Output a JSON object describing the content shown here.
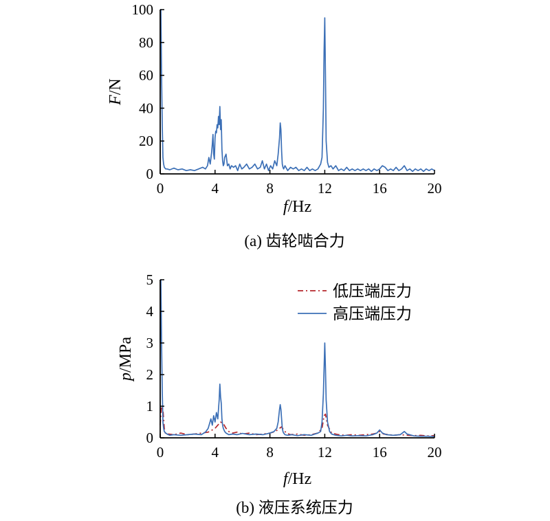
{
  "chart_data": [
    {
      "type": "line",
      "caption": "(a) 齿轮啮合力",
      "xlabel_var": "f",
      "xlabel_unit": "/Hz",
      "ylabel_var": "F",
      "ylabel_unit": "/N",
      "xlim": [
        0,
        20
      ],
      "ylim": [
        0,
        100
      ],
      "xticks": [
        0,
        4,
        8,
        12,
        16,
        20
      ],
      "yticks": [
        0,
        20,
        40,
        60,
        80,
        100
      ],
      "grid": false,
      "series": [
        {
          "name": "",
          "color": "#3b6fb6",
          "dash": "",
          "x": [
            0,
            0.05,
            0.1,
            0.15,
            0.2,
            0.25,
            0.3,
            0.35,
            0.4,
            0.5,
            0.7,
            1.0,
            1.3,
            1.6,
            1.9,
            2.2,
            2.5,
            2.8,
            3.1,
            3.3,
            3.45,
            3.55,
            3.65,
            3.75,
            3.8,
            3.85,
            3.9,
            3.95,
            4.0,
            4.05,
            4.1,
            4.15,
            4.2,
            4.25,
            4.3,
            4.35,
            4.4,
            4.45,
            4.5,
            4.55,
            4.6,
            4.65,
            4.7,
            4.8,
            4.9,
            5.0,
            5.1,
            5.2,
            5.35,
            5.5,
            5.65,
            5.8,
            5.95,
            6.1,
            6.3,
            6.5,
            6.7,
            6.9,
            7.1,
            7.3,
            7.45,
            7.6,
            7.75,
            7.9,
            8.05,
            8.2,
            8.35,
            8.5,
            8.6,
            8.7,
            8.75,
            8.8,
            8.85,
            8.9,
            8.95,
            9.0,
            9.1,
            9.3,
            9.5,
            9.7,
            9.9,
            10.1,
            10.3,
            10.5,
            10.7,
            10.9,
            11.1,
            11.3,
            11.5,
            11.7,
            11.8,
            11.9,
            11.95,
            12.0,
            12.05,
            12.1,
            12.2,
            12.3,
            12.45,
            12.6,
            12.8,
            13.0,
            13.2,
            13.4,
            13.6,
            13.8,
            14.0,
            14.2,
            14.4,
            14.6,
            14.8,
            15.0,
            15.2,
            15.4,
            15.6,
            15.8,
            16.0,
            16.2,
            16.4,
            16.6,
            16.8,
            17.0,
            17.2,
            17.4,
            17.6,
            17.8,
            18.0,
            18.2,
            18.4,
            18.6,
            18.8,
            19.0,
            19.2,
            19.4,
            19.6,
            19.8,
            20.0
          ],
          "y": [
            100,
            100,
            60,
            30,
            10,
            6,
            4,
            3.5,
            3,
            3,
            2.5,
            3.5,
            2.5,
            3,
            2,
            2.5,
            2,
            3,
            4,
            3,
            5,
            10,
            6,
            13,
            18,
            24,
            12,
            9,
            22,
            26,
            25,
            30,
            28,
            35,
            30,
            41,
            27,
            33,
            15,
            8,
            5,
            6,
            10,
            12,
            5,
            6,
            3,
            5,
            4,
            5,
            2,
            6,
            3,
            4,
            6,
            3,
            4,
            6,
            3,
            4,
            8,
            3,
            6,
            2,
            5,
            3,
            8,
            5,
            12,
            22,
            31,
            27,
            14,
            6,
            4,
            3,
            5,
            2,
            4,
            3,
            4,
            2,
            3,
            2,
            4,
            2,
            3,
            2,
            3,
            6,
            10,
            40,
            75,
            95,
            60,
            20,
            7,
            4,
            5,
            3,
            5,
            2,
            3,
            2,
            4,
            2,
            3,
            2,
            3,
            2,
            3,
            2,
            3,
            1.5,
            3,
            2,
            3,
            5,
            4,
            2,
            3,
            2,
            4,
            2,
            3,
            5,
            2,
            3,
            1.5,
            3,
            2,
            3,
            1.5,
            3,
            2,
            3,
            2
          ]
        }
      ]
    },
    {
      "type": "line",
      "caption": "(b) 液压系统压力",
      "xlabel_var": "f",
      "xlabel_unit": "/Hz",
      "ylabel_var": "p",
      "ylabel_unit": "/MPa",
      "xlim": [
        0,
        20
      ],
      "ylim": [
        0,
        5
      ],
      "xticks": [
        0,
        4,
        8,
        12,
        16,
        20
      ],
      "yticks": [
        0,
        1,
        2,
        3,
        4,
        5
      ],
      "grid": false,
      "legend_position": "top-right",
      "series": [
        {
          "name": "低压端压力",
          "color": "#b5262b",
          "dash": "8,4,2,4",
          "x": [
            0,
            0.1,
            0.2,
            0.3,
            0.4,
            0.6,
            1.0,
            1.5,
            2.0,
            2.5,
            3.0,
            3.5,
            3.8,
            4.0,
            4.2,
            4.4,
            4.6,
            4.8,
            5.0,
            5.3,
            5.6,
            6.0,
            6.5,
            7.0,
            7.5,
            8.0,
            8.4,
            8.7,
            8.85,
            9.0,
            9.2,
            9.5,
            10.0,
            10.5,
            11.0,
            11.5,
            11.8,
            11.95,
            12.05,
            12.2,
            12.5,
            13.0,
            13.5,
            14.0,
            14.5,
            15.0,
            15.5,
            15.8,
            16.0,
            16.3,
            16.7,
            17.0,
            17.5,
            18.0,
            18.5,
            19.0,
            19.5,
            20.0
          ],
          "y": [
            0.4,
            1.0,
            0.9,
            0.3,
            0.1,
            0.12,
            0.1,
            0.15,
            0.1,
            0.12,
            0.15,
            0.18,
            0.25,
            0.3,
            0.4,
            0.5,
            0.45,
            0.3,
            0.2,
            0.15,
            0.18,
            0.12,
            0.15,
            0.1,
            0.12,
            0.15,
            0.2,
            0.3,
            0.35,
            0.25,
            0.15,
            0.1,
            0.12,
            0.08,
            0.1,
            0.15,
            0.3,
            0.7,
            0.75,
            0.4,
            0.15,
            0.1,
            0.08,
            0.1,
            0.08,
            0.1,
            0.12,
            0.15,
            0.2,
            0.12,
            0.1,
            0.08,
            0.1,
            0.08,
            0.07,
            0.08,
            0.06,
            0.07
          ]
        },
        {
          "name": "高压端压力",
          "color": "#3b6fb6",
          "dash": "",
          "x": [
            0,
            0.05,
            0.1,
            0.15,
            0.2,
            0.25,
            0.3,
            0.4,
            0.5,
            0.7,
            1.0,
            1.5,
            2.0,
            2.5,
            3.0,
            3.3,
            3.5,
            3.7,
            3.8,
            3.9,
            4.0,
            4.1,
            4.2,
            4.3,
            4.35,
            4.4,
            4.45,
            4.5,
            4.55,
            4.6,
            4.7,
            4.8,
            5.0,
            5.3,
            5.6,
            6.0,
            6.5,
            7.0,
            7.5,
            8.0,
            8.3,
            8.5,
            8.6,
            8.7,
            8.75,
            8.8,
            8.85,
            8.9,
            8.95,
            9.0,
            9.1,
            9.3,
            9.6,
            10.0,
            10.5,
            11.0,
            11.5,
            11.7,
            11.8,
            11.9,
            11.95,
            12.0,
            12.05,
            12.1,
            12.2,
            12.35,
            12.5,
            12.8,
            13.2,
            13.6,
            14.0,
            14.5,
            15.0,
            15.5,
            15.8,
            16.0,
            16.2,
            16.5,
            17.0,
            17.5,
            17.8,
            18.0,
            18.5,
            19.0,
            19.5,
            20.0
          ],
          "y": [
            3,
            5,
            3,
            1.5,
            0.5,
            0.3,
            0.2,
            0.15,
            0.12,
            0.08,
            0.1,
            0.08,
            0.1,
            0.12,
            0.1,
            0.18,
            0.3,
            0.6,
            0.4,
            0.7,
            0.5,
            0.8,
            0.6,
            1.2,
            1.7,
            1.3,
            1.1,
            0.6,
            0.4,
            0.3,
            0.2,
            0.15,
            0.1,
            0.12,
            0.1,
            0.14,
            0.1,
            0.12,
            0.1,
            0.15,
            0.2,
            0.3,
            0.5,
            0.9,
            1.05,
            0.9,
            0.6,
            0.3,
            0.2,
            0.15,
            0.1,
            0.08,
            0.1,
            0.07,
            0.1,
            0.08,
            0.15,
            0.2,
            0.5,
            1.4,
            2.2,
            3.0,
            2.2,
            1.2,
            0.5,
            0.2,
            0.12,
            0.08,
            0.06,
            0.08,
            0.06,
            0.07,
            0.06,
            0.1,
            0.15,
            0.25,
            0.15,
            0.1,
            0.08,
            0.1,
            0.2,
            0.12,
            0.06,
            0.05,
            0.05,
            0.04
          ]
        }
      ]
    }
  ]
}
